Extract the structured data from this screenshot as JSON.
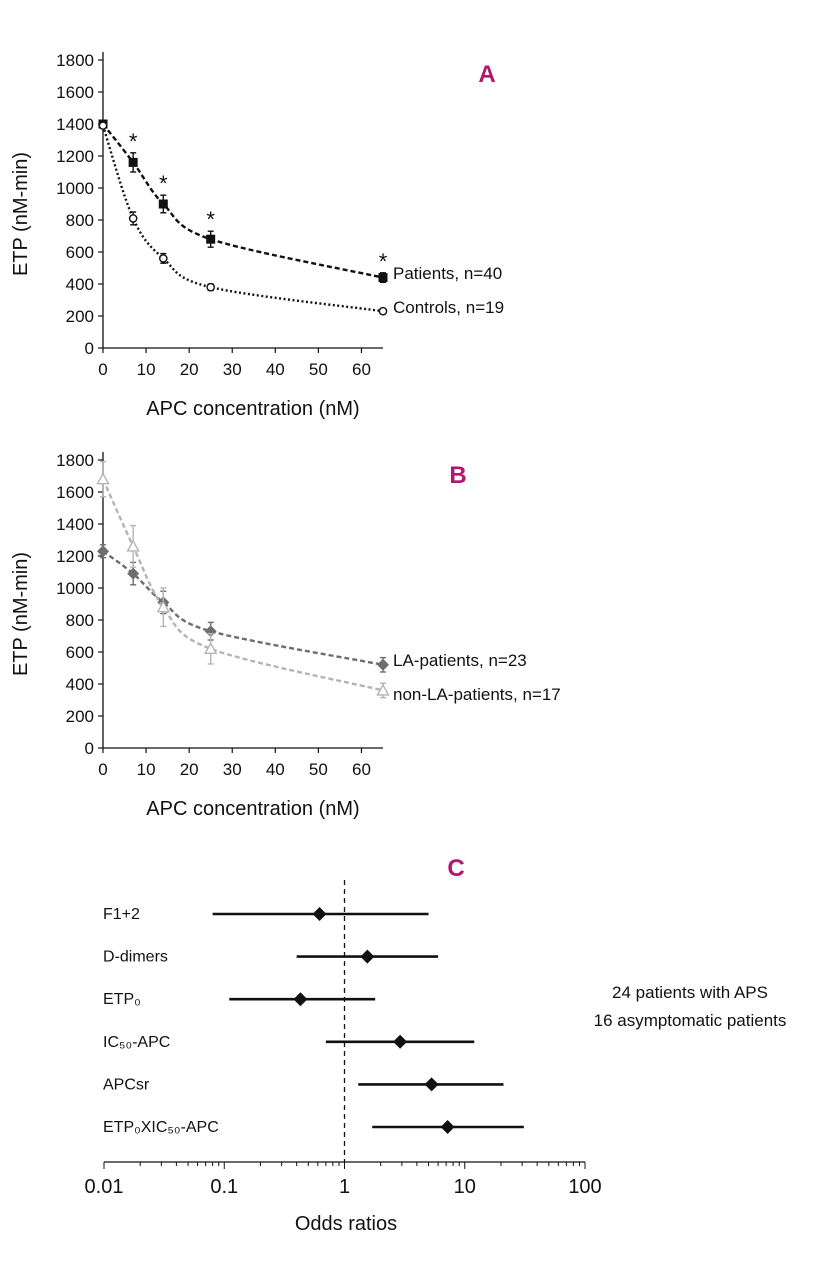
{
  "chart_data": [
    {
      "panel": "A",
      "type": "line",
      "xlabel": "APC concentration (nM)",
      "ylabel": "ETP (nM-min)",
      "xlim": [
        0,
        65
      ],
      "ylim": [
        0,
        1800
      ],
      "xticks": [
        "0",
        "10",
        "20",
        "30",
        "40",
        "50",
        "60"
      ],
      "yticks": [
        "0",
        "200",
        "400",
        "600",
        "800",
        "1000",
        "1200",
        "1400",
        "1600",
        "1800"
      ],
      "series": [
        {
          "name": "Patients, n=40",
          "marker": "square",
          "color": "#111111",
          "line": "dashed",
          "x": [
            0,
            7,
            14,
            25,
            65
          ],
          "y": [
            1400,
            1160,
            900,
            680,
            440
          ],
          "err": [
            0,
            60,
            55,
            50,
            30
          ],
          "significance": [
            "",
            "*",
            "*",
            "*",
            "*"
          ]
        },
        {
          "name": "Controls, n=19",
          "marker": "circle-open",
          "color": "#111111",
          "line": "dotted",
          "x": [
            0,
            7,
            14,
            25,
            65
          ],
          "y": [
            1390,
            810,
            560,
            380,
            230
          ],
          "err": [
            0,
            40,
            30,
            20,
            15
          ]
        }
      ]
    },
    {
      "panel": "B",
      "type": "line",
      "xlabel": "APC concentration (nM)",
      "ylabel": "ETP (nM-min)",
      "xlim": [
        0,
        65
      ],
      "ylim": [
        0,
        1800
      ],
      "xticks": [
        "0",
        "10",
        "20",
        "30",
        "40",
        "50",
        "60"
      ],
      "yticks": [
        "0",
        "200",
        "400",
        "600",
        "800",
        "1000",
        "1200",
        "1400",
        "1600",
        "1800"
      ],
      "series": [
        {
          "name": "LA-patients, n=23",
          "marker": "diamond",
          "color": "#6e6e6e",
          "line": "dashed",
          "x": [
            0,
            7,
            14,
            25,
            65
          ],
          "y": [
            1230,
            1090,
            910,
            730,
            520
          ],
          "err": [
            40,
            70,
            70,
            55,
            45
          ]
        },
        {
          "name": "non-LA-patients, n=17",
          "marker": "triangle-open",
          "color": "#b4b4b4",
          "line": "dashed",
          "x": [
            0,
            7,
            14,
            25,
            65
          ],
          "y": [
            1680,
            1260,
            880,
            620,
            360
          ],
          "err": [
            110,
            130,
            120,
            95,
            45
          ]
        }
      ]
    },
    {
      "panel": "C",
      "type": "forest",
      "xlabel": "Odds ratios",
      "xscale": "log",
      "xlim": [
        0.01,
        100
      ],
      "xticks": [
        "0.01",
        "0.1",
        "1",
        "10",
        "100"
      ],
      "reference": 1,
      "rows": [
        {
          "label": "F1+2",
          "or": 0.62,
          "lo": 0.08,
          "hi": 5.0
        },
        {
          "label": "D-dimers",
          "or": 1.55,
          "lo": 0.4,
          "hi": 6.0
        },
        {
          "label": "ETP₀",
          "or": 0.43,
          "lo": 0.11,
          "hi": 1.8
        },
        {
          "label": "IC₅₀-APC",
          "or": 2.9,
          "lo": 0.7,
          "hi": 12.0
        },
        {
          "label": "APCsr",
          "or": 5.3,
          "lo": 1.3,
          "hi": 21.0
        },
        {
          "label": "ETP₀XIC₅₀-APC",
          "or": 7.2,
          "lo": 1.7,
          "hi": 31.0
        }
      ],
      "note": [
        "24 patients with APS",
        "16 asymptomatic patients"
      ]
    }
  ]
}
